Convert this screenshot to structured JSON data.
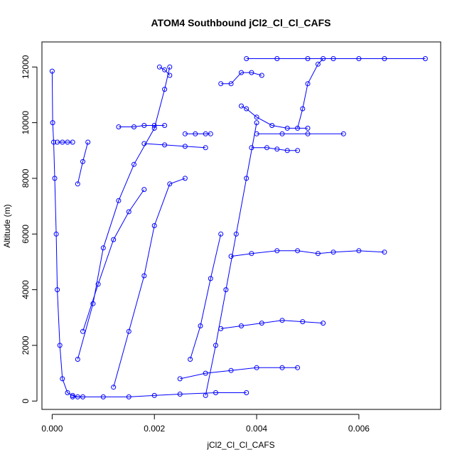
{
  "chart_data": {
    "type": "scatter",
    "title": "ATOM4 Southbound jCl2_Cl_Cl_CAFS",
    "xlabel": "jCl2_Cl_Cl_CAFS",
    "ylabel": "Altitude (m)",
    "xlim": [
      -0.0002,
      0.0076
    ],
    "ylim": [
      -300,
      12900
    ],
    "xticks": [
      0.0,
      0.002,
      0.004,
      0.006
    ],
    "xtick_labels": [
      "0.000",
      "0.002",
      "0.004",
      "0.006"
    ],
    "yticks": [
      0,
      2000,
      4000,
      6000,
      8000,
      10000,
      12000
    ],
    "ytick_labels": [
      "0",
      "2000",
      "4000",
      "6000",
      "8000",
      "10000",
      "12000"
    ],
    "grid": false,
    "legend": "none",
    "marker": "open-circle-with-lines",
    "color": "#0000ff",
    "series": [
      {
        "x": [
          0.0,
          1e-05,
          3e-05,
          5e-05,
          8e-05,
          0.0001,
          0.00015,
          0.0002,
          0.0003,
          0.0004,
          0.0005,
          0.0006
        ],
        "y": [
          11850,
          10000,
          9300,
          8000,
          6000,
          4000,
          2000,
          800,
          300,
          200,
          150,
          150
        ]
      },
      {
        "x": [
          0.0005,
          0.0008,
          0.001,
          0.0013,
          0.0016,
          0.002,
          0.0022,
          0.0023
        ],
        "y": [
          1500,
          3500,
          5500,
          7200,
          8500,
          9800,
          11200,
          12000
        ]
      },
      {
        "x": [
          0.0013,
          0.0016,
          0.0018,
          0.002,
          0.0022
        ],
        "y": [
          9850,
          9850,
          9900,
          9900,
          9900
        ]
      },
      {
        "x": [
          0.0018,
          0.0022,
          0.0026,
          0.003
        ],
        "y": [
          9250,
          9200,
          9150,
          9100
        ]
      },
      {
        "x": [
          0.0026,
          0.0028,
          0.003,
          0.0031
        ],
        "y": [
          9600,
          9600,
          9600,
          9600
        ]
      },
      {
        "x": [
          0.0021,
          0.0022,
          0.0023
        ],
        "y": [
          12000,
          11900,
          11700
        ]
      },
      {
        "x": [
          0.0012,
          0.0015,
          0.0018,
          0.002,
          0.0023,
          0.0026
        ],
        "y": [
          500,
          2500,
          4500,
          6300,
          7800,
          8000
        ]
      },
      {
        "x": [
          0.003,
          0.0032,
          0.0034,
          0.0036,
          0.0038,
          0.004
        ],
        "y": [
          200,
          2000,
          4000,
          6000,
          8000,
          10000
        ]
      },
      {
        "x": [
          0.0033,
          0.0035,
          0.0037,
          0.0039,
          0.0041
        ],
        "y": [
          11400,
          11400,
          11800,
          11800,
          11700
        ]
      },
      {
        "x": [
          0.0037,
          0.0038,
          0.004,
          0.0043,
          0.0046,
          0.005
        ],
        "y": [
          10600,
          10500,
          10200,
          9900,
          9800,
          9800
        ]
      },
      {
        "x": [
          0.004,
          0.0045,
          0.005,
          0.0057
        ],
        "y": [
          9600,
          9600,
          9600,
          9600
        ]
      },
      {
        "x": [
          0.0039,
          0.0042,
          0.0044,
          0.0046,
          0.0048
        ],
        "y": [
          9100,
          9100,
          9050,
          9000,
          9000
        ]
      },
      {
        "x": [
          0.0038,
          0.0044,
          0.005,
          0.0055,
          0.006,
          0.0065,
          0.0073
        ],
        "y": [
          12300,
          12300,
          12300,
          12300,
          12300,
          12300,
          12300
        ]
      },
      {
        "x": [
          0.0048,
          0.0049,
          0.005,
          0.0052,
          0.0053
        ],
        "y": [
          9800,
          10500,
          11400,
          12100,
          12300
        ]
      },
      {
        "x": [
          0.0035,
          0.0039,
          0.0044,
          0.0048,
          0.0052,
          0.0055,
          0.006,
          0.0065
        ],
        "y": [
          5200,
          5300,
          5400,
          5400,
          5300,
          5350,
          5400,
          5350
        ]
      },
      {
        "x": [
          0.0033,
          0.0037,
          0.0041,
          0.0045,
          0.0049,
          0.0053
        ],
        "y": [
          2600,
          2700,
          2800,
          2900,
          2850,
          2800
        ]
      },
      {
        "x": [
          0.0025,
          0.003,
          0.0035,
          0.004,
          0.0045,
          0.0048
        ],
        "y": [
          800,
          1000,
          1100,
          1200,
          1200,
          1200
        ]
      },
      {
        "x": [
          0.0004,
          0.001,
          0.0015,
          0.002,
          0.0025,
          0.0032,
          0.0038
        ],
        "y": [
          150,
          150,
          150,
          200,
          250,
          300,
          300
        ]
      },
      {
        "x": [
          0.0027,
          0.0029,
          0.0031,
          0.0033
        ],
        "y": [
          1500,
          2700,
          4400,
          6000
        ]
      },
      {
        "x": [
          0.0006,
          0.0009,
          0.0012,
          0.0015,
          0.0018
        ],
        "y": [
          2500,
          4200,
          5800,
          6800,
          7600
        ]
      },
      {
        "x": [
          0.0001,
          0.0002,
          0.0003,
          0.0004
        ],
        "y": [
          9300,
          9300,
          9300,
          9300
        ]
      },
      {
        "x": [
          0.0005,
          0.0006,
          0.0007
        ],
        "y": [
          7800,
          8600,
          9300
        ]
      }
    ]
  }
}
